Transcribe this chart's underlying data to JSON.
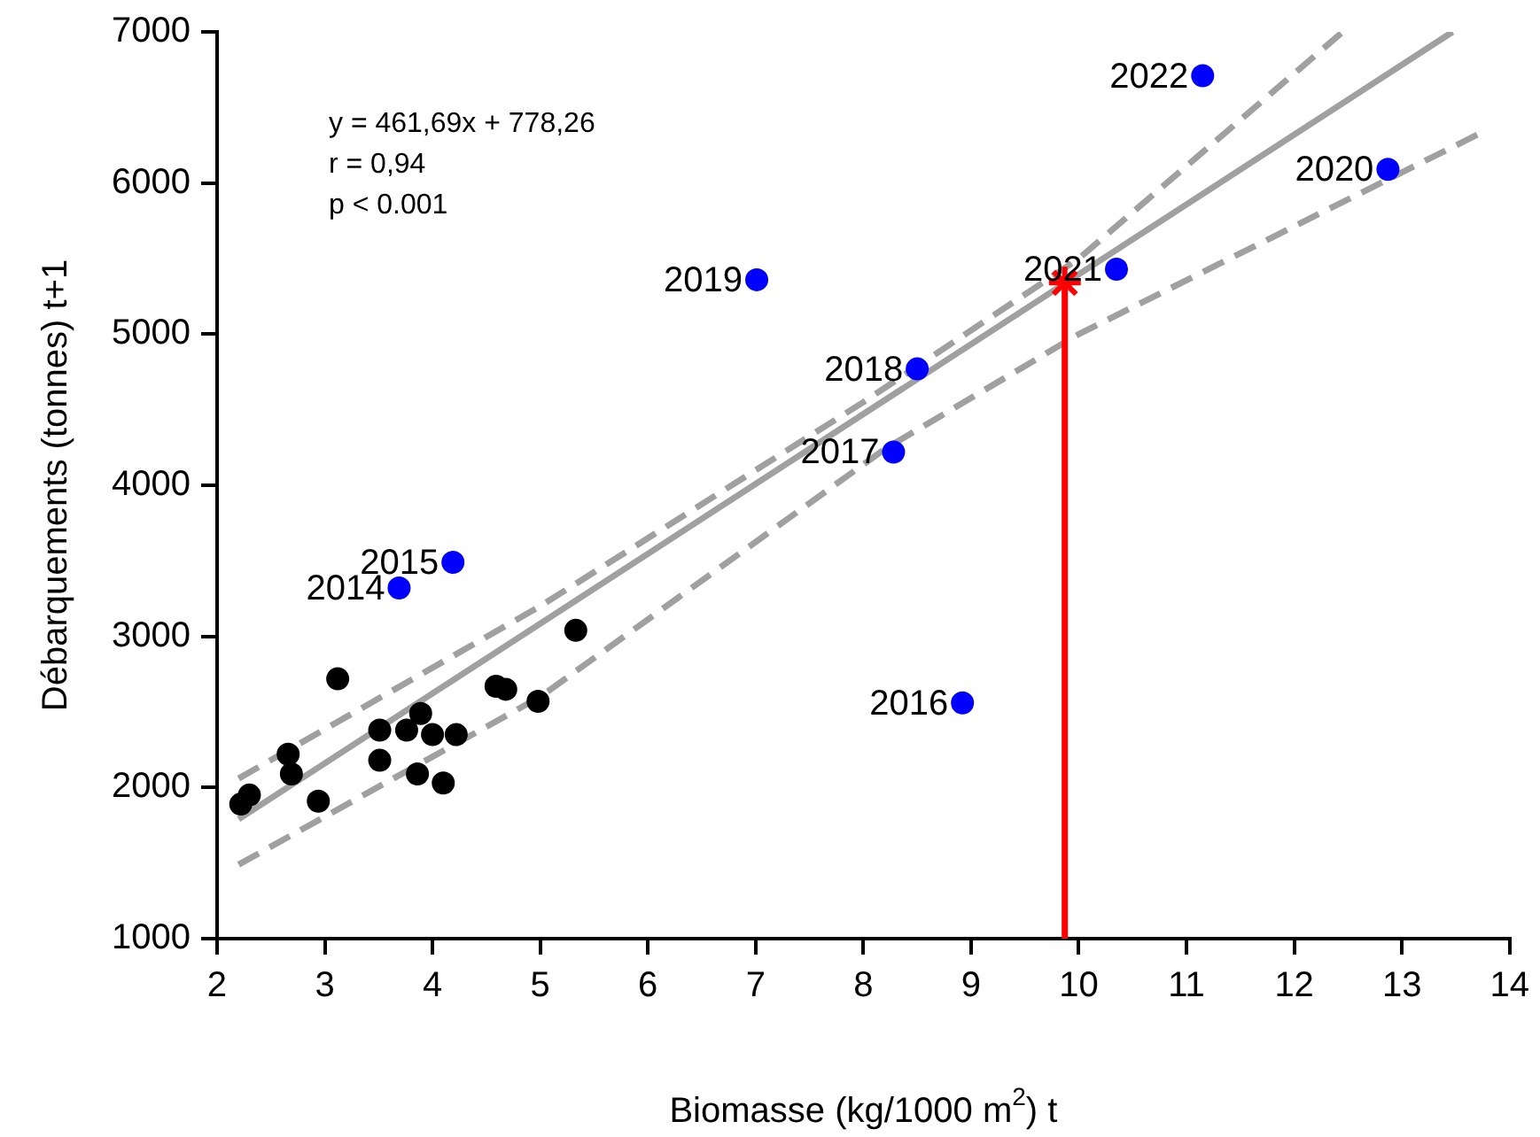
{
  "chart_data": {
    "type": "scatter",
    "xlabel": "Biomasse (kg/1000 m$^{2}$) t",
    "ylabel": "Débarquements (tonnes) t+1",
    "xlim": [
      2,
      14
    ],
    "xticks": [
      2,
      3,
      4,
      5,
      6,
      7,
      8,
      9,
      10,
      11,
      12,
      13,
      14
    ],
    "ylim": [
      1000,
      7000
    ],
    "yticks": [
      1000,
      2000,
      3000,
      4000,
      5000,
      6000,
      7000
    ],
    "grid": false,
    "legend": false,
    "annotations": [
      "y = 461,69x + 778,26",
      "r = 0,94",
      "p < 0.001",
      {
        "text": "2014",
        "x": 3.69,
        "y": 3320
      },
      {
        "text": "2015",
        "x": 4.19,
        "y": 3490
      },
      {
        "text": "2016",
        "x": 8.92,
        "y": 2560
      },
      {
        "text": "2017",
        "x": 8.28,
        "y": 4220
      },
      {
        "text": "2018",
        "x": 8.5,
        "y": 4770
      },
      {
        "text": "2019",
        "x": 7.01,
        "y": 5360
      },
      {
        "text": "2020",
        "x": 12.87,
        "y": 6090
      },
      {
        "text": "2021",
        "x": 10.35,
        "y": 5430
      },
      {
        "text": "2022",
        "x": 11.15,
        "y": 6710
      }
    ],
    "series": [
      {
        "type": "line",
        "color": "#a0a0a0",
        "line_style": "solid",
        "marker": "none",
        "x": [
          2.2,
          13.47
        ],
        "values": [
          1790,
          7000
        ]
      },
      {
        "type": "line",
        "color": "#a0a0a0",
        "line_style": "dashed",
        "marker": "none",
        "x": [
          2.2,
          5,
          8,
          10,
          12.45
        ],
        "values": [
          2060,
          3200,
          4550,
          5500,
          7000
        ]
      },
      {
        "type": "line",
        "color": "#a0a0a0",
        "line_style": "dashed",
        "marker": "none",
        "x": [
          2.2,
          5,
          8.2,
          10,
          13.7
        ],
        "values": [
          1490,
          2600,
          4240,
          5000,
          6320
        ]
      },
      {
        "color": "#000000",
        "marker": "circle",
        "x": [
          2.22,
          2.3,
          2.66,
          2.69,
          2.94,
          3.12,
          3.51,
          3.51,
          3.76,
          3.89,
          3.86,
          4.0,
          4.1,
          4.22,
          4.59,
          4.68,
          4.98,
          5.33
        ],
        "values": [
          1890,
          1950,
          2220,
          2090,
          1910,
          2720,
          2380,
          2180,
          2380,
          2490,
          2090,
          2350,
          2030,
          2350,
          2670,
          2650,
          2570,
          3040
        ]
      },
      {
        "color": "#0000ff",
        "marker": "circle",
        "x": [
          3.69,
          4.19,
          8.92,
          8.28,
          8.5,
          7.01,
          12.87,
          10.35,
          11.15
        ],
        "values": [
          3320,
          3490,
          2560,
          4220,
          4770,
          5360,
          6090,
          5430,
          6710
        ]
      },
      {
        "type": "line",
        "color": "#ff0000",
        "line_style": "solid",
        "marker": "none",
        "x": [
          9.87,
          9.87
        ],
        "values": [
          1000,
          5340
        ]
      },
      {
        "color": "#ff0000",
        "marker": "cross",
        "x": [
          9.87
        ],
        "values": [
          5340
        ]
      }
    ]
  }
}
